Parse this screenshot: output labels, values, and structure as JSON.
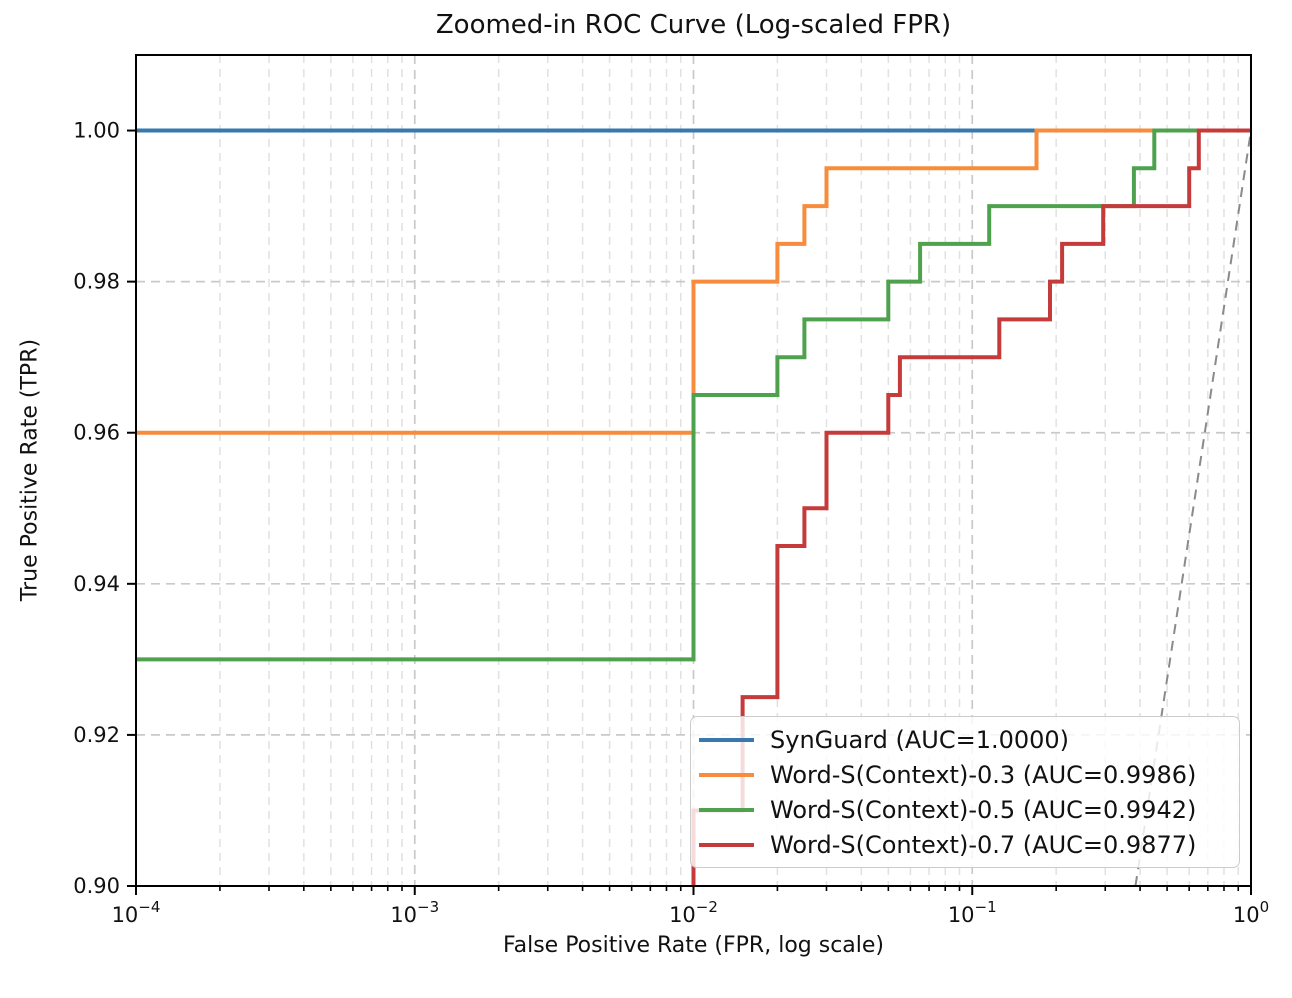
{
  "chart_data": {
    "type": "line",
    "subtype": "roc-step-curves",
    "title": "Zoomed-in ROC Curve (Log-scaled FPR)",
    "xlabel": "False Positive Rate (FPR, log scale)",
    "ylabel": "True Positive Rate (TPR)",
    "x_scale": "log",
    "xlim": [
      0.0001,
      1.0
    ],
    "ylim": [
      0.9,
      1.01
    ],
    "grid": {
      "major": true,
      "minor_x": true,
      "style": "dashed"
    },
    "grid_major_color": "#c9c9c9",
    "grid_minor_color": "#e1e1e1",
    "x_ticks": [
      {
        "value": 0.0001,
        "base": "10",
        "exp": "−4"
      },
      {
        "value": 0.001,
        "base": "10",
        "exp": "−3"
      },
      {
        "value": 0.01,
        "base": "10",
        "exp": "−2"
      },
      {
        "value": 0.1,
        "base": "10",
        "exp": "−1"
      },
      {
        "value": 1.0,
        "base": "10",
        "exp": "0"
      }
    ],
    "y_ticks": [
      {
        "value": 0.9,
        "label": "0.90"
      },
      {
        "value": 0.92,
        "label": "0.92"
      },
      {
        "value": 0.94,
        "label": "0.94"
      },
      {
        "value": 0.96,
        "label": "0.96"
      },
      {
        "value": 0.98,
        "label": "0.98"
      },
      {
        "value": 1.0,
        "label": "1.00"
      }
    ],
    "legend_position": "lower right",
    "series": [
      {
        "name": "SynGuard",
        "auc": "1.0000",
        "label": "SynGuard (AUC=1.0000)",
        "color": "#3778af",
        "points": [
          [
            0.0001,
            1.0
          ],
          [
            1.0,
            1.0
          ]
        ]
      },
      {
        "name": "Word-S(Context)-0.3",
        "auc": "0.9986",
        "label": "Word-S(Context)-0.3 (AUC=0.9986)",
        "color": "#f78c3c",
        "points": [
          [
            0.0001,
            0.96
          ],
          [
            0.01,
            0.96
          ],
          [
            0.01,
            0.98
          ],
          [
            0.02,
            0.98
          ],
          [
            0.02,
            0.985
          ],
          [
            0.025,
            0.985
          ],
          [
            0.025,
            0.99
          ],
          [
            0.03,
            0.99
          ],
          [
            0.03,
            0.995
          ],
          [
            0.17,
            0.995
          ],
          [
            0.17,
            1.0
          ],
          [
            1.0,
            1.0
          ]
        ]
      },
      {
        "name": "Word-S(Context)-0.5",
        "auc": "0.9942",
        "label": "Word-S(Context)-0.5 (AUC=0.9942)",
        "color": "#4fa24d",
        "points": [
          [
            0.0001,
            0.93
          ],
          [
            0.01,
            0.93
          ],
          [
            0.01,
            0.965
          ],
          [
            0.02,
            0.965
          ],
          [
            0.02,
            0.97
          ],
          [
            0.025,
            0.97
          ],
          [
            0.025,
            0.975
          ],
          [
            0.05,
            0.975
          ],
          [
            0.05,
            0.98
          ],
          [
            0.065,
            0.98
          ],
          [
            0.065,
            0.985
          ],
          [
            0.115,
            0.985
          ],
          [
            0.115,
            0.99
          ],
          [
            0.38,
            0.99
          ],
          [
            0.38,
            0.995
          ],
          [
            0.45,
            0.995
          ],
          [
            0.45,
            1.0
          ],
          [
            1.0,
            1.0
          ]
        ]
      },
      {
        "name": "Word-S(Context)-0.7",
        "auc": "0.9877",
        "label": "Word-S(Context)-0.7 (AUC=0.9877)",
        "color": "#c53b3b",
        "points": [
          [
            0.01,
            0.9
          ],
          [
            0.01,
            0.91
          ],
          [
            0.015,
            0.91
          ],
          [
            0.015,
            0.925
          ],
          [
            0.02,
            0.925
          ],
          [
            0.02,
            0.945
          ],
          [
            0.025,
            0.945
          ],
          [
            0.025,
            0.95
          ],
          [
            0.03,
            0.95
          ],
          [
            0.03,
            0.96
          ],
          [
            0.05,
            0.96
          ],
          [
            0.05,
            0.965
          ],
          [
            0.055,
            0.965
          ],
          [
            0.055,
            0.97
          ],
          [
            0.125,
            0.97
          ],
          [
            0.125,
            0.975
          ],
          [
            0.19,
            0.975
          ],
          [
            0.19,
            0.98
          ],
          [
            0.21,
            0.98
          ],
          [
            0.21,
            0.985
          ],
          [
            0.295,
            0.985
          ],
          [
            0.295,
            0.99
          ],
          [
            0.6,
            0.99
          ],
          [
            0.6,
            0.995
          ],
          [
            0.65,
            0.995
          ],
          [
            0.65,
            1.0
          ],
          [
            1.0,
            1.0
          ]
        ]
      }
    ],
    "chance_line": {
      "name": "chance-diagonal",
      "style": "dashed",
      "color": "#8a8a8a",
      "points": [
        [
          0.385,
          0.9
        ],
        [
          1.0,
          1.0
        ]
      ]
    }
  }
}
